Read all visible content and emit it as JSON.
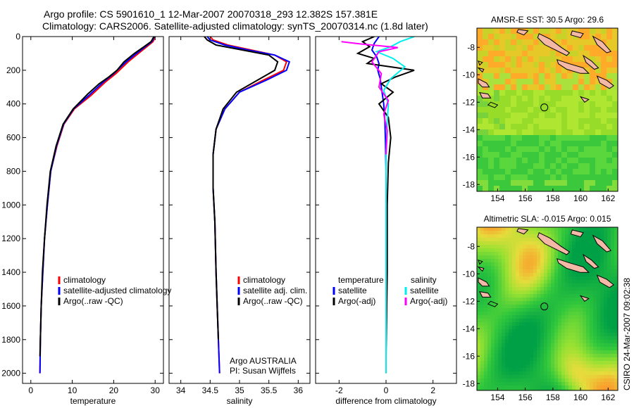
{
  "title": {
    "line1": "Argo profile: CS 5901610_1 12-Mar-2007 20070318_293 12.382S 157.381E",
    "line2": "Climatology: CARS2006. Satellite-adjusted climatology: synTS_20070314.nc (1.8d later)"
  },
  "stamp": "CSIRO 24-Mar-2007 09:02:38",
  "colors": {
    "climatology": "#ff0000",
    "satellite": "#0000ff",
    "argo": "#000000",
    "salinity_satellite": "#00eeee",
    "salinity_argo": "#ff00ff",
    "land": "#f4b8a6"
  },
  "chart_data": [
    {
      "type": "line",
      "id": "temperature",
      "xlabel": "temperature",
      "ylabel": "",
      "xlim": [
        -2,
        32
      ],
      "ylim": [
        2060,
        0
      ],
      "xticks": [
        0,
        10,
        20,
        30
      ],
      "yticks": [
        0,
        200,
        400,
        600,
        800,
        1000,
        1200,
        1400,
        1600,
        1800,
        2000
      ],
      "legend": [
        "climatology",
        "satellite-adjusted climatology",
        "Argo(..raw -QC)"
      ],
      "series": [
        {
          "name": "climatology",
          "color": "#ff0000",
          "x": [
            30.0,
            29.5,
            28.0,
            26.0,
            23.5,
            20.5,
            18.0,
            14.5,
            10.5,
            8.0,
            6.3,
            4.8,
            4.0,
            3.3,
            2.9,
            2.5,
            2.3,
            2.2
          ],
          "y": [
            0,
            30,
            60,
            100,
            150,
            220,
            270,
            350,
            430,
            520,
            650,
            800,
            1000,
            1200,
            1400,
            1600,
            1800,
            2000
          ]
        },
        {
          "name": "satellite-adjusted climatology",
          "color": "#0000ff",
          "x": [
            29.8,
            29.2,
            27.6,
            25.5,
            23.0,
            20.0,
            17.5,
            14.0,
            10.3,
            7.9,
            6.2,
            4.8,
            4.0,
            3.3,
            2.9,
            2.5,
            2.3,
            2.2
          ],
          "y": [
            0,
            30,
            60,
            100,
            150,
            220,
            270,
            350,
            430,
            520,
            650,
            800,
            1000,
            1200,
            1400,
            1600,
            1800,
            2000
          ]
        },
        {
          "name": "Argo(..raw -QC)",
          "color": "#000000",
          "x": [
            29.7,
            29.0,
            27.3,
            25.0,
            22.5,
            20.8,
            18.8,
            16.5,
            13.8,
            10.2,
            7.8,
            6.1,
            4.7,
            3.9,
            3.3,
            2.8,
            2.5,
            2.3,
            2.2
          ],
          "y": [
            0,
            30,
            60,
            100,
            150,
            200,
            240,
            280,
            340,
            430,
            520,
            650,
            800,
            1000,
            1200,
            1400,
            1600,
            1800,
            1900
          ]
        }
      ]
    },
    {
      "type": "line",
      "id": "salinity",
      "xlabel": "salinity",
      "xlim": [
        33.8,
        36.2
      ],
      "ylim": [
        2060,
        0
      ],
      "xticks": [
        34,
        34.5,
        35,
        35.5,
        36
      ],
      "xticklabels": [
        "34",
        "34.5",
        "35",
        "35.5",
        "36"
      ],
      "legend": [
        "climatology",
        "satellite adj. clim.",
        "Argo(..raw -QC)"
      ],
      "annotation": [
        "Argo AUSTRALIA",
        "PI: Susan Wijffels"
      ],
      "series": [
        {
          "name": "climatology",
          "color": "#ff0000",
          "x": [
            34.5,
            34.55,
            34.8,
            35.2,
            35.6,
            35.8,
            35.75,
            35.4,
            35.0,
            34.75,
            34.6,
            34.55,
            34.55,
            34.58,
            34.6,
            34.62,
            34.64,
            34.66
          ],
          "y": [
            0,
            20,
            50,
            80,
            110,
            150,
            200,
            260,
            330,
            430,
            550,
            700,
            900,
            1100,
            1400,
            1600,
            1800,
            2000
          ]
        },
        {
          "name": "satellite adj. clim.",
          "color": "#0000ff",
          "x": [
            34.45,
            34.5,
            34.75,
            35.15,
            35.6,
            35.85,
            35.8,
            35.45,
            35.0,
            34.75,
            34.6,
            34.55,
            34.55,
            34.58,
            34.6,
            34.62,
            34.64,
            34.66
          ],
          "y": [
            0,
            20,
            50,
            80,
            110,
            150,
            200,
            260,
            330,
            430,
            550,
            700,
            900,
            1100,
            1400,
            1600,
            1800,
            2000
          ]
        },
        {
          "name": "Argo(..raw -QC)",
          "color": "#000000",
          "x": [
            34.4,
            34.45,
            34.6,
            35.05,
            35.5,
            35.65,
            35.6,
            35.3,
            34.95,
            34.72,
            34.6,
            34.55,
            34.55,
            34.58,
            34.6,
            34.62,
            34.64
          ],
          "y": [
            0,
            20,
            50,
            80,
            110,
            150,
            200,
            260,
            330,
            430,
            550,
            700,
            900,
            1100,
            1400,
            1600,
            1800
          ]
        }
      ]
    },
    {
      "type": "line",
      "id": "difference",
      "xlabel": "difference from climatology",
      "xlim": [
        -3,
        3
      ],
      "ylim": [
        2060,
        0
      ],
      "xticks": [
        -2,
        0,
        2
      ],
      "legend_left": {
        "header": "temperature",
        "items": [
          "satellite",
          "Argo(-adj)"
        ]
      },
      "legend_right": {
        "header": "salinity",
        "items": [
          "satellite",
          "Argo(-adj)"
        ]
      },
      "series": [
        {
          "name": "temperature satellite",
          "color": "#0000ff",
          "x": [
            -0.3,
            -0.5,
            -0.6,
            -0.4,
            -0.3,
            -0.35,
            -0.25,
            -0.2,
            -0.15,
            -0.1,
            -0.05,
            -0.03,
            0.0,
            0.0,
            0.0,
            0.0,
            0.0
          ],
          "y": [
            0,
            40,
            80,
            120,
            160,
            200,
            250,
            300,
            350,
            400,
            500,
            600,
            800,
            1000,
            1400,
            1800,
            2000
          ]
        },
        {
          "name": "temperature Argo(-adj)",
          "color": "#000000",
          "x": [
            -0.5,
            -1.0,
            -0.7,
            -1.2,
            -0.5,
            -0.8,
            1.2,
            0.4,
            -0.2,
            0.3,
            -0.3,
            0.1,
            0.2,
            0.1,
            0.05,
            0.05,
            0.0
          ],
          "y": [
            0,
            30,
            60,
            100,
            130,
            160,
            200,
            240,
            280,
            330,
            400,
            480,
            600,
            750,
            1000,
            1400,
            1900
          ]
        },
        {
          "name": "salinity satellite",
          "color": "#00eeee",
          "x": [
            1.2,
            0.6,
            0.2,
            -0.4,
            0.3,
            0.8,
            0.2,
            -0.1,
            0.1,
            0.05,
            0.0,
            0.0,
            0.0
          ],
          "y": [
            0,
            30,
            60,
            90,
            130,
            180,
            250,
            320,
            400,
            500,
            700,
            1000,
            2000
          ]
        },
        {
          "name": "salinity Argo(-adj)",
          "color": "#ff00ff",
          "x": [
            -1.9,
            -1.0,
            -0.2,
            0.5,
            -0.3,
            -0.6,
            -0.2,
            -0.3,
            0.1,
            -0.1,
            0.05,
            0.0
          ],
          "y": [
            30,
            45,
            55,
            65,
            90,
            150,
            220,
            300,
            380,
            460,
            560,
            700
          ]
        }
      ]
    },
    {
      "type": "heatmap",
      "id": "sst-map",
      "title": "AMSR-E SST: 30.5 Argo: 29.6",
      "xlim": [
        152.5,
        162.7
      ],
      "ylim": [
        -18.5,
        -6.6
      ],
      "xticks": [
        154,
        156,
        158,
        160,
        162
      ],
      "yticks": [
        -8,
        -10,
        -12,
        -14,
        -16,
        -18
      ],
      "marker": {
        "lon": 157.38,
        "lat": -12.38
      }
    },
    {
      "type": "heatmap",
      "id": "sla-map",
      "title": "Altimetric SLA: -0.015 Argo: 0.015",
      "xlim": [
        152.5,
        162.7
      ],
      "ylim": [
        -18.5,
        -6.6
      ],
      "xticks": [
        154,
        156,
        158,
        160,
        162
      ],
      "yticks": [
        -8,
        -10,
        -12,
        -14,
        -16,
        -18
      ],
      "marker": {
        "lon": 157.38,
        "lat": -12.38
      }
    }
  ]
}
